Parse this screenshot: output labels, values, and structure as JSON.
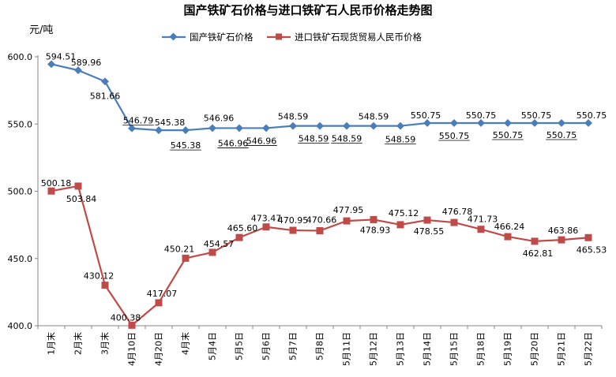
{
  "chart_data": {
    "type": "line",
    "title": "国产铁矿石价格与进口铁矿石人民币价格走势图",
    "ylabel": "元/吨",
    "xlabel": "",
    "ylim": [
      400,
      600
    ],
    "yticks": [
      "400.0",
      "450.0",
      "500.0",
      "550.0",
      "600.0"
    ],
    "grid": false,
    "legend": "top",
    "categories": [
      "1月末",
      "2月末",
      "3月末",
      "4月10日",
      "4月20日",
      "4月末",
      "5月4日",
      "5月5日",
      "5月6日",
      "5月7日",
      "5月8日",
      "5月11日",
      "5月12日",
      "5月13日",
      "5月14日",
      "5月15日",
      "5月18日",
      "5月19日",
      "5月20日",
      "5月21日",
      "5月22日"
    ],
    "series": [
      {
        "name": "国产铁矿石价格",
        "color": "#4a7ebb",
        "marker": "diamond",
        "values": [
          594.51,
          589.96,
          581.66,
          546.79,
          545.38,
          545.38,
          546.96,
          546.96,
          546.96,
          548.59,
          548.59,
          548.59,
          548.59,
          548.59,
          550.75,
          550.75,
          550.75,
          550.75,
          550.75,
          550.75,
          550.75
        ],
        "labels": [
          "594.51",
          "589.96",
          "581.66",
          "546.79",
          "545.38",
          "545.38",
          "546.96",
          "546.96",
          "546.96",
          "548.59",
          "548.59",
          "548.59",
          "548.59",
          "548.59",
          "550.75",
          "550.75",
          "550.75",
          "550.75",
          "550.75",
          "550.75",
          "550.75"
        ]
      },
      {
        "name": "进口铁矿石现货贸易人民币价格",
        "color": "#be4b48",
        "marker": "square",
        "values": [
          500.18,
          503.84,
          430.12,
          400.38,
          417.07,
          450.21,
          454.57,
          465.6,
          473.47,
          470.95,
          470.66,
          477.95,
          478.93,
          475.12,
          478.55,
          476.78,
          471.73,
          466.24,
          462.81,
          463.86,
          465.53
        ],
        "labels": [
          "500.18",
          "503.84",
          "430.12",
          "400.38",
          "417.07",
          "450.21",
          "454.57",
          "465.60",
          "473.47",
          "470.95",
          "470.66",
          "477.95",
          "478.93",
          "475.12",
          "478.55",
          "476.78",
          "471.73",
          "466.24",
          "462.81",
          "463.86",
          "465.53"
        ]
      }
    ]
  }
}
